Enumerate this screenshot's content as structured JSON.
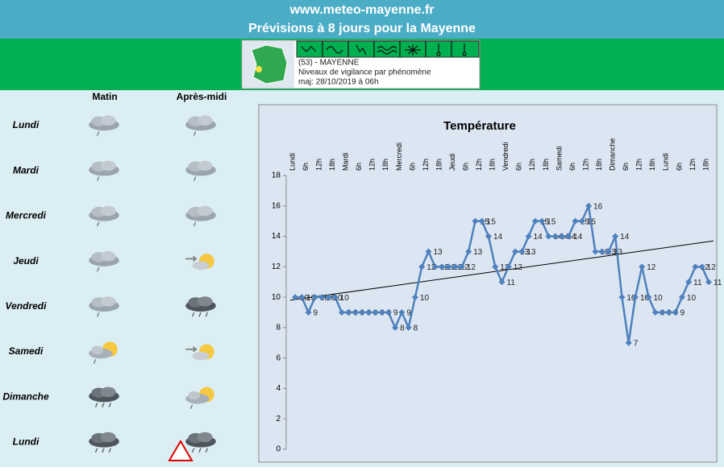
{
  "header": {
    "site": "www.meteo-mayenne.fr",
    "title": "Prévisions  à 8 jours pour la Mayenne"
  },
  "vigilance": {
    "department": "(53) - MAYENNE",
    "subtitle": "Niveaux de vigilance par phénomène",
    "updated": "maj: 28/10/2019 à 06h"
  },
  "forecast": {
    "columns": [
      "Matin",
      "Après-midi"
    ],
    "days": [
      "Lundi",
      "Mardi",
      "Mercredi",
      "Jeudi",
      "Vendredi",
      "Samedi",
      "Dimanche",
      "Lundi"
    ]
  },
  "chart_data": {
    "type": "line",
    "title": "Température",
    "color": "#4f81bd",
    "categories": [
      "Lundi",
      null,
      "6h",
      null,
      "12h",
      null,
      "18h",
      null,
      "Mardi",
      null,
      "6h",
      null,
      "12h",
      null,
      "18h",
      null,
      "Mercredi",
      null,
      "6h",
      null,
      "12h",
      null,
      "18h",
      null,
      "Jeudi",
      null,
      "6h",
      null,
      "12h",
      null,
      "18h",
      null,
      "Vendredi",
      null,
      "6h",
      null,
      "12h",
      null,
      "18h",
      null,
      "Samedi",
      null,
      "6h",
      null,
      "12h",
      null,
      "18h",
      null,
      "Dimanche",
      null,
      "6h",
      null,
      "12h",
      null,
      "18h",
      null,
      "Lundi",
      null,
      "6h",
      null,
      "12h",
      null,
      "18h"
    ],
    "values": [
      10,
      10,
      9,
      10,
      10,
      10,
      10,
      9,
      9,
      9,
      9,
      9,
      9,
      9,
      9,
      8,
      9,
      8,
      10,
      12,
      13,
      12,
      12,
      12,
      12,
      12,
      13,
      15,
      15,
      14,
      12,
      11,
      12,
      13,
      13,
      14,
      15,
      15,
      14,
      14,
      14,
      14,
      15,
      15,
      16,
      13,
      13,
      13,
      14,
      10,
      7,
      10,
      12,
      10,
      9,
      9,
      9,
      9,
      10,
      11,
      12,
      12,
      11
    ],
    "trendline": {
      "start": 9.8,
      "end": 13.7,
      "color": "#000000"
    },
    "ylim": [
      0,
      18
    ],
    "yticks": [
      0,
      2,
      4,
      6,
      8,
      10,
      12,
      14,
      16,
      18
    ],
    "grid": false
  }
}
